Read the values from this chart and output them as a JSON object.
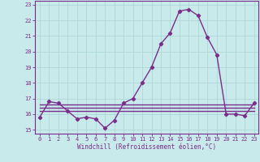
{
  "x": [
    0,
    1,
    2,
    3,
    4,
    5,
    6,
    7,
    8,
    9,
    10,
    11,
    12,
    13,
    14,
    15,
    16,
    17,
    18,
    19,
    20,
    21,
    22,
    23
  ],
  "y_main": [
    15.8,
    16.8,
    16.7,
    16.2,
    15.7,
    15.8,
    15.7,
    15.1,
    15.6,
    16.7,
    17.0,
    18.0,
    19.0,
    20.5,
    21.2,
    22.6,
    22.7,
    22.3,
    20.9,
    19.8,
    16.0,
    16.0,
    15.9,
    16.7
  ],
  "y_flat1": [
    16.6,
    16.6,
    16.6,
    16.6,
    16.6,
    16.6,
    16.6,
    16.6,
    16.6,
    16.6,
    16.6,
    16.6,
    16.6,
    16.6,
    16.6,
    16.6,
    16.6,
    16.6,
    16.6,
    16.6,
    16.6,
    16.6,
    16.6,
    16.6
  ],
  "y_flat2": [
    16.4,
    16.4,
    16.4,
    16.4,
    16.4,
    16.4,
    16.4,
    16.4,
    16.4,
    16.4,
    16.4,
    16.4,
    16.4,
    16.4,
    16.4,
    16.4,
    16.4,
    16.4,
    16.4,
    16.4,
    16.4,
    16.4,
    16.4,
    16.4
  ],
  "y_flat3": [
    16.2,
    16.2,
    16.2,
    16.2,
    16.2,
    16.2,
    16.2,
    16.2,
    16.2,
    16.2,
    16.2,
    16.2,
    16.2,
    16.2,
    16.2,
    16.2,
    16.2,
    16.2,
    16.2,
    16.2,
    16.2,
    16.2,
    16.2,
    16.2
  ],
  "line_color": "#7b2d8b",
  "bg_color": "#c8eaea",
  "grid_color": "#b0d8d8",
  "ylim": [
    14.75,
    23.25
  ],
  "xlim": [
    -0.5,
    23.5
  ],
  "yticks": [
    15,
    16,
    17,
    18,
    19,
    20,
    21,
    22,
    23
  ],
  "xticks": [
    0,
    1,
    2,
    3,
    4,
    5,
    6,
    7,
    8,
    9,
    10,
    11,
    12,
    13,
    14,
    15,
    16,
    17,
    18,
    19,
    20,
    21,
    22,
    23
  ],
  "xlabel": "Windchill (Refroidissement éolien,°C)",
  "marker": "D",
  "marker_size": 2.2,
  "line_width": 1.0,
  "tick_fontsize": 5.0,
  "xlabel_fontsize": 5.5
}
